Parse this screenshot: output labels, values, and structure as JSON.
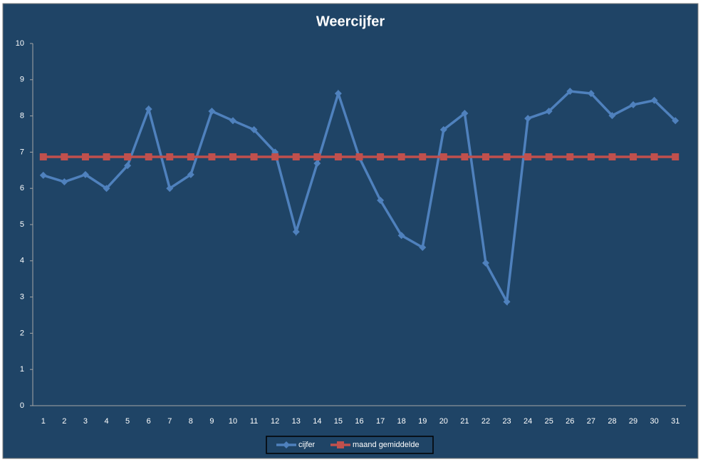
{
  "chart_data": {
    "type": "line",
    "title": "Weercijfer",
    "categories": [
      "1",
      "2",
      "3",
      "4",
      "5",
      "6",
      "7",
      "8",
      "9",
      "10",
      "11",
      "12",
      "13",
      "14",
      "15",
      "16",
      "17",
      "18",
      "19",
      "20",
      "21",
      "22",
      "23",
      "24",
      "25",
      "26",
      "27",
      "28",
      "29",
      "30",
      "31"
    ],
    "series": [
      {
        "name": "cijfer",
        "color": "#4f81bd",
        "marker": "diamond",
        "values": [
          6.36,
          6.18,
          6.38,
          6.0,
          6.63,
          8.19,
          6.0,
          6.38,
          8.13,
          7.87,
          7.62,
          7.0,
          4.8,
          6.69,
          8.62,
          6.85,
          5.67,
          4.7,
          4.37,
          7.62,
          8.07,
          3.94,
          2.87,
          7.93,
          8.13,
          8.68,
          8.62,
          8.01,
          8.31,
          8.43,
          7.87
        ]
      },
      {
        "name": "maand gemiddelde",
        "color": "#c0504d",
        "marker": "square",
        "values": [
          6.87,
          6.87,
          6.87,
          6.87,
          6.87,
          6.87,
          6.87,
          6.87,
          6.87,
          6.87,
          6.87,
          6.87,
          6.87,
          6.87,
          6.87,
          6.87,
          6.87,
          6.87,
          6.87,
          6.87,
          6.87,
          6.87,
          6.87,
          6.87,
          6.87,
          6.87,
          6.87,
          6.87,
          6.87,
          6.87,
          6.87
        ]
      }
    ],
    "ylim": [
      0,
      10
    ],
    "yticks": [
      0,
      1,
      2,
      3,
      4,
      5,
      6,
      7,
      8,
      9,
      10
    ],
    "grid": false,
    "legend": "bottom"
  }
}
